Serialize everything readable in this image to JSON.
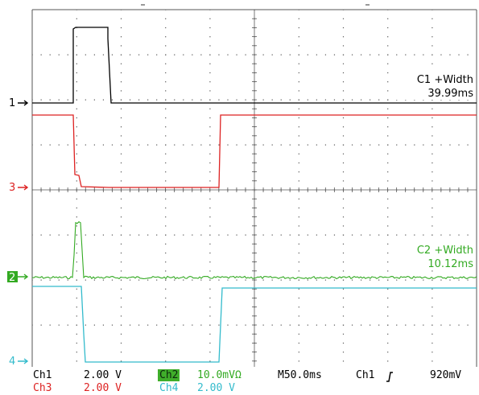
{
  "colors": {
    "ch1": "#000000",
    "ch2": "#33aa22",
    "ch3": "#dd2222",
    "ch4": "#33bbcc",
    "grid": "#555555"
  },
  "markers": [
    {
      "label": "1",
      "color": "#000000"
    },
    {
      "label": "3",
      "color": "#dd2222"
    },
    {
      "label": "2",
      "color": "#33aa22"
    },
    {
      "label": "4",
      "color": "#33bbcc"
    }
  ],
  "measurements": {
    "m1_title": "C1 +Width",
    "m1_value": "39.99ms",
    "m2_title": "C2 +Width",
    "m2_value": "10.12ms"
  },
  "status": {
    "ch1_name": "Ch1",
    "ch1_scale": "2.00 V",
    "ch2_name": "Ch2",
    "ch2_scale": "10.0mVΩ",
    "timebase": "M50.0ms",
    "trigger_source": "Ch1",
    "trigger_level": "920mV",
    "ch3_name": "Ch3",
    "ch3_scale": "2.00 V",
    "ch4_name": "Ch4",
    "ch4_scale": "2.00 V"
  }
}
